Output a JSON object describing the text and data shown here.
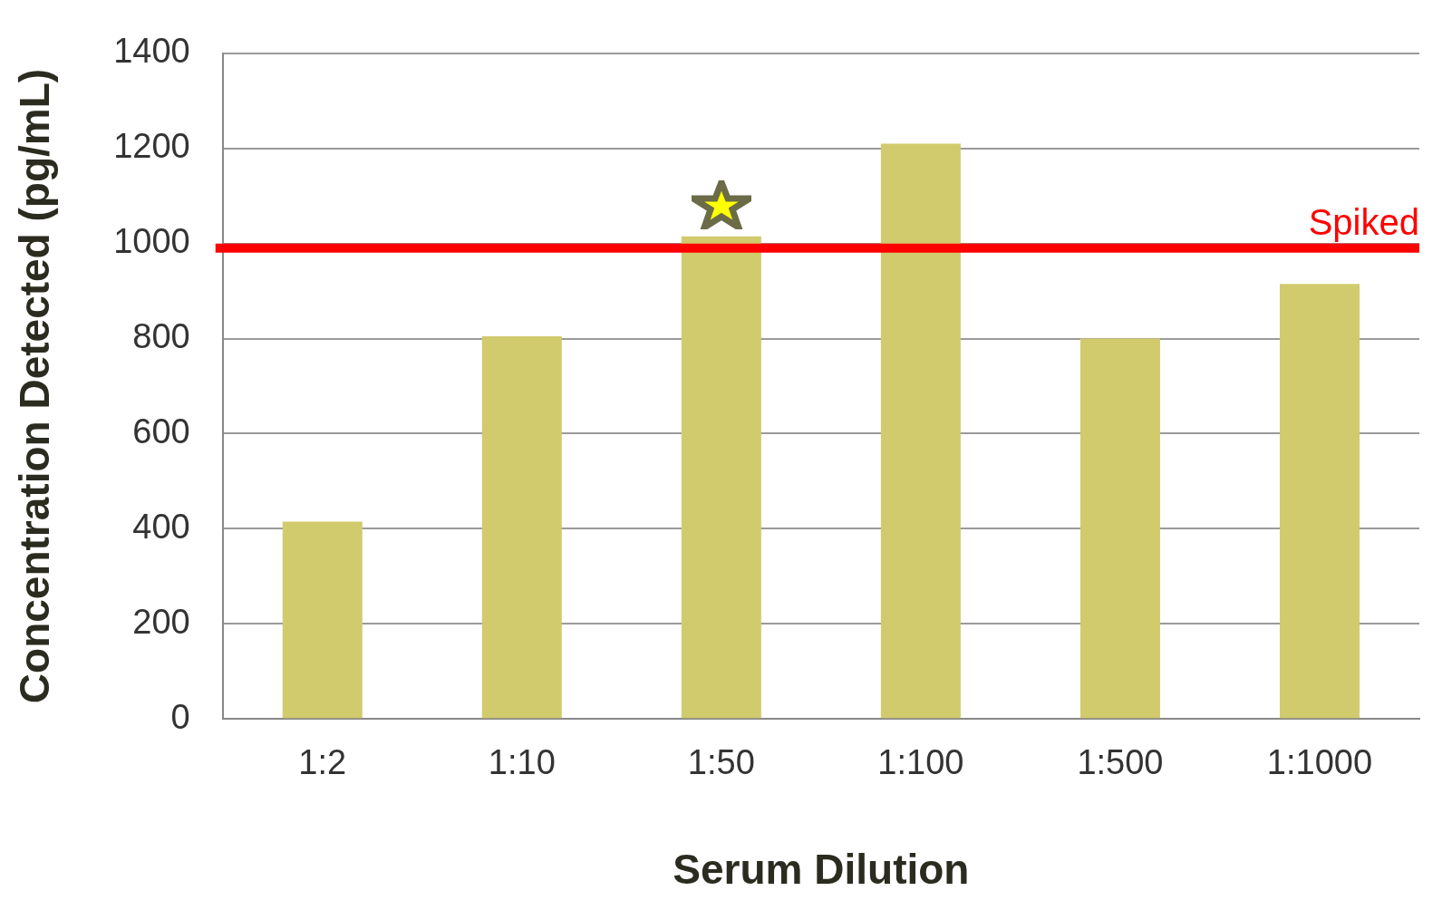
{
  "chart_data": {
    "type": "bar",
    "xlabel": "Serum Dilution",
    "ylabel": "Concentration Detected (pg/mL)",
    "categories": [
      "1:2",
      "1:10",
      "1:50",
      "1:100",
      "1:500",
      "1:1000"
    ],
    "values": [
      415,
      805,
      1015,
      1210,
      800,
      915
    ],
    "color": "#d1cb6e",
    "ylim": [
      0,
      1400
    ],
    "yticks": [
      0,
      200,
      400,
      600,
      800,
      1000,
      1200,
      1400
    ],
    "grid": "y",
    "legend": false,
    "ref_lines": [
      {
        "axis": "y",
        "value": 990,
        "label": "Spiked",
        "color": "#ff0000"
      }
    ]
  }
}
